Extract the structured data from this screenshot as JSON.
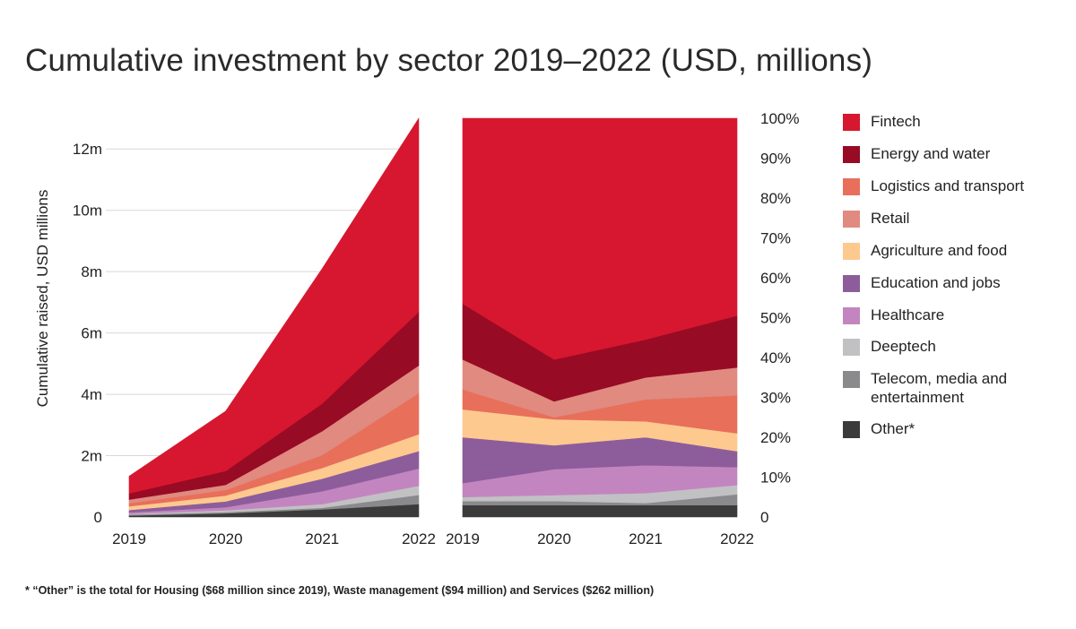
{
  "title": "Cumulative investment by sector 2019–2022 (USD, millions)",
  "footnote": "* “Other” is the total for Housing ($68 million since 2019), Waste management ($94 million) and Services ($262 million)",
  "chart_data": [
    {
      "type": "area",
      "stacked": true,
      "title": "",
      "xlabel": "",
      "ylabel": "Cumulative raised, USD millions",
      "x": [
        2019,
        2020,
        2021,
        2022
      ],
      "y_ticks": [
        "0",
        "2m",
        "4m",
        "6m",
        "8m",
        "10m",
        "12m"
      ],
      "ylim": [
        0,
        13
      ],
      "grid": true,
      "series": [
        {
          "name": "Other*",
          "color": "#3b3b3b",
          "values": [
            0.05,
            0.12,
            0.25,
            0.42
          ]
        },
        {
          "name": "Telecom, media and entertainment",
          "color": "#8a8a8c",
          "values": [
            0.03,
            0.04,
            0.05,
            0.3
          ]
        },
        {
          "name": "Deeptech",
          "color": "#c1c1c3",
          "values": [
            0.02,
            0.06,
            0.12,
            0.3
          ]
        },
        {
          "name": "Healthcare",
          "color": "#c385c0",
          "values": [
            0.05,
            0.1,
            0.42,
            0.56
          ]
        },
        {
          "name": "Education and jobs",
          "color": "#8d5d9b",
          "values": [
            0.08,
            0.19,
            0.41,
            0.57
          ]
        },
        {
          "name": "Agriculture and food",
          "color": "#fdc98f",
          "values": [
            0.12,
            0.19,
            0.35,
            0.55
          ]
        },
        {
          "name": "Logistics and transport",
          "color": "#e86f5a",
          "values": [
            0.1,
            0.18,
            0.42,
            1.34
          ]
        },
        {
          "name": "Retail",
          "color": "#e08a80",
          "values": [
            0.12,
            0.17,
            0.78,
            0.9
          ]
        },
        {
          "name": "Energy and water",
          "color": "#980b24",
          "values": [
            0.2,
            0.45,
            0.9,
            1.75
          ]
        },
        {
          "name": "Fintech",
          "color": "#d7172f",
          "values": [
            0.56,
            1.95,
            4.4,
            6.31
          ]
        }
      ]
    },
    {
      "type": "area",
      "stacked": true,
      "normalized": true,
      "title": "",
      "xlabel": "",
      "ylabel": "",
      "x": [
        2019,
        2020,
        2021,
        2022
      ],
      "y_ticks": [
        "100%",
        "90%",
        "80%",
        "70%",
        "60%",
        "50%",
        "40%",
        "30%",
        "20%",
        "10%",
        "0"
      ],
      "ylim": [
        0,
        100
      ],
      "grid": false,
      "series": [
        {
          "name": "Other*",
          "color": "#3b3b3b",
          "values": [
            3,
            3,
            3,
            3
          ]
        },
        {
          "name": "Telecom, media and entertainment",
          "color": "#8a8a8c",
          "values": [
            1,
            1,
            0.5,
            2.7
          ]
        },
        {
          "name": "Deeptech",
          "color": "#c1c1c3",
          "values": [
            1,
            1.5,
            2.5,
            2.3
          ]
        },
        {
          "name": "Healthcare",
          "color": "#c385c0",
          "values": [
            3.5,
            6.5,
            7,
            4.5
          ]
        },
        {
          "name": "Education and jobs",
          "color": "#8d5d9b",
          "values": [
            11.5,
            6,
            7,
            4
          ]
        },
        {
          "name": "Agriculture and food",
          "color": "#fdc98f",
          "values": [
            7,
            6.5,
            4,
            4.5
          ]
        },
        {
          "name": "Logistics and transport",
          "color": "#e86f5a",
          "values": [
            5,
            0.5,
            5.5,
            9.5
          ]
        },
        {
          "name": "Retail",
          "color": "#e08a80",
          "values": [
            7.5,
            4,
            5.5,
            7
          ]
        },
        {
          "name": "Energy and water",
          "color": "#980b24",
          "values": [
            14,
            10.5,
            9.5,
            13
          ]
        },
        {
          "name": "Fintech",
          "color": "#d7172f",
          "values": [
            46.5,
            60.5,
            55.5,
            49.5
          ]
        }
      ]
    }
  ],
  "legend": [
    {
      "label": "Fintech",
      "color": "#d7172f"
    },
    {
      "label": "Energy and water",
      "color": "#980b24"
    },
    {
      "label": "Logistics and transport",
      "color": "#e86f5a"
    },
    {
      "label": "Retail",
      "color": "#e08a80"
    },
    {
      "label": "Agriculture and food",
      "color": "#fdc98f"
    },
    {
      "label": "Education and jobs",
      "color": "#8d5d9b"
    },
    {
      "label": "Healthcare",
      "color": "#c385c0"
    },
    {
      "label": "Deeptech",
      "color": "#c1c1c3"
    },
    {
      "label": "Telecom, media and entertainment",
      "color": "#8a8a8c"
    },
    {
      "label": "Other*",
      "color": "#3b3b3b"
    }
  ]
}
